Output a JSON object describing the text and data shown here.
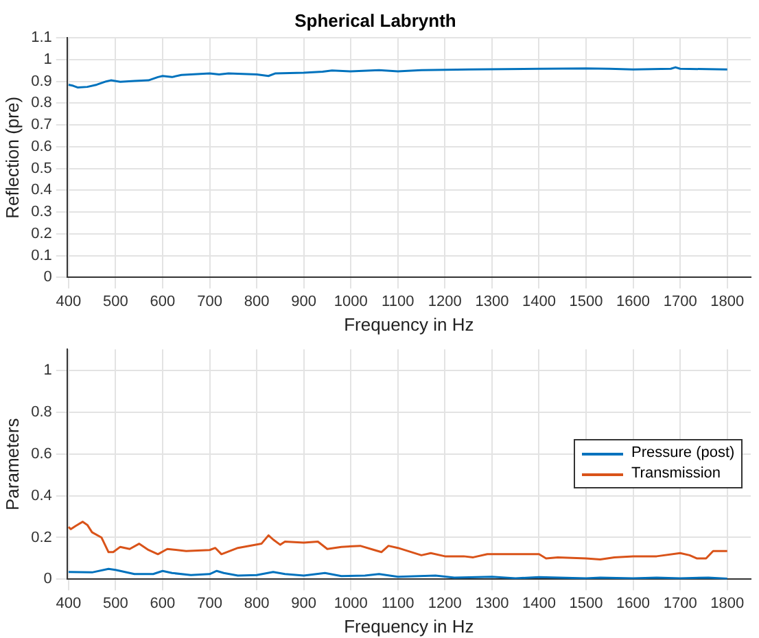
{
  "chart_data": [
    {
      "type": "line",
      "title": "Spherical Labrynth",
      "xlabel": "Frequency in Hz",
      "ylabel": "Reflection (pre)",
      "color": "#0072bd",
      "x": [
        400,
        410,
        420,
        440,
        460,
        480,
        490,
        510,
        540,
        570,
        590,
        600,
        620,
        640,
        700,
        720,
        740,
        800,
        825,
        840,
        900,
        940,
        960,
        1000,
        1060,
        1100,
        1150,
        1250,
        1400,
        1500,
        1550,
        1600,
        1680,
        1690,
        1700,
        1800
      ],
      "values": [
        0.885,
        0.88,
        0.872,
        0.875,
        0.885,
        0.9,
        0.905,
        0.898,
        0.902,
        0.905,
        0.92,
        0.925,
        0.92,
        0.93,
        0.937,
        0.932,
        0.937,
        0.932,
        0.925,
        0.937,
        0.94,
        0.945,
        0.95,
        0.946,
        0.952,
        0.946,
        0.952,
        0.955,
        0.958,
        0.96,
        0.958,
        0.955,
        0.958,
        0.965,
        0.958,
        0.955
      ],
      "xlim": [
        397,
        1850
      ],
      "xticks": [
        400,
        500,
        600,
        700,
        800,
        900,
        1000,
        1100,
        1200,
        1300,
        1400,
        1500,
        1600,
        1700,
        1800
      ],
      "ylim": [
        0,
        1.1
      ],
      "yticks": [
        0,
        0.1,
        0.2,
        0.3,
        0.4,
        0.5,
        0.6,
        0.7,
        0.8,
        0.9,
        1,
        1.1
      ],
      "grid": true,
      "legend": false
    },
    {
      "type": "line",
      "xlabel": "Frequency in Hz",
      "ylabel": "Parameters",
      "legend": "right",
      "grid": true,
      "xlim": [
        397,
        1850
      ],
      "xticks": [
        400,
        500,
        600,
        700,
        800,
        900,
        1000,
        1100,
        1200,
        1300,
        1400,
        1500,
        1600,
        1700,
        1800
      ],
      "ylim": [
        0,
        1.1
      ],
      "yticks": [
        0,
        0.2,
        0.4,
        0.6,
        0.8,
        1
      ],
      "series": [
        {
          "name": "Pressure (post)",
          "color": "#0072bd",
          "x": [
            400,
            450,
            485,
            500,
            540,
            580,
            600,
            620,
            660,
            700,
            715,
            730,
            760,
            800,
            835,
            860,
            900,
            945,
            980,
            1030,
            1060,
            1100,
            1180,
            1220,
            1300,
            1350,
            1400,
            1500,
            1530,
            1600,
            1650,
            1700,
            1760,
            1800
          ],
          "values": [
            0.035,
            0.033,
            0.05,
            0.045,
            0.025,
            0.025,
            0.04,
            0.03,
            0.02,
            0.025,
            0.04,
            0.03,
            0.018,
            0.02,
            0.035,
            0.025,
            0.018,
            0.03,
            0.015,
            0.018,
            0.025,
            0.012,
            0.018,
            0.008,
            0.012,
            0.005,
            0.01,
            0.005,
            0.008,
            0.005,
            0.008,
            0.005,
            0.008,
            0.003
          ]
        },
        {
          "name": "Transmission",
          "color": "#d95319",
          "x": [
            400,
            405,
            415,
            430,
            440,
            450,
            470,
            485,
            495,
            510,
            530,
            550,
            570,
            590,
            610,
            650,
            700,
            712,
            725,
            760,
            810,
            825,
            835,
            850,
            860,
            900,
            930,
            950,
            980,
            1020,
            1050,
            1065,
            1080,
            1100,
            1150,
            1170,
            1200,
            1240,
            1260,
            1290,
            1350,
            1400,
            1415,
            1440,
            1500,
            1530,
            1560,
            1600,
            1650,
            1700,
            1720,
            1735,
            1755,
            1770,
            1800
          ],
          "values": [
            0.25,
            0.24,
            0.255,
            0.275,
            0.26,
            0.225,
            0.2,
            0.13,
            0.13,
            0.155,
            0.145,
            0.17,
            0.14,
            0.12,
            0.145,
            0.135,
            0.14,
            0.15,
            0.12,
            0.15,
            0.17,
            0.21,
            0.19,
            0.165,
            0.18,
            0.175,
            0.18,
            0.145,
            0.155,
            0.16,
            0.14,
            0.13,
            0.16,
            0.15,
            0.115,
            0.125,
            0.11,
            0.11,
            0.105,
            0.12,
            0.12,
            0.12,
            0.1,
            0.105,
            0.1,
            0.095,
            0.105,
            0.11,
            0.11,
            0.125,
            0.115,
            0.1,
            0.1,
            0.135,
            0.135
          ]
        }
      ]
    }
  ]
}
